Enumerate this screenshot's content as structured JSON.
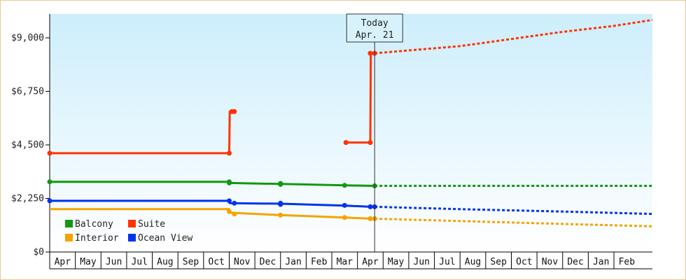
{
  "chart_data": {
    "type": "line",
    "title": "",
    "xlabel": "",
    "ylabel": "",
    "ylim": [
      0,
      10000
    ],
    "y_ticks": [
      "$0",
      "$2,250",
      "$4,500",
      "$6,750",
      "$9,000"
    ],
    "y_tick_values": [
      0,
      2250,
      4500,
      6750,
      9000
    ],
    "x_month_labels": [
      "Apr",
      "May",
      "Jun",
      "Jul",
      "Aug",
      "Sep",
      "Oct",
      "Nov",
      "Dec",
      "Jan",
      "Feb",
      "Mar",
      "Apr",
      "May",
      "Jun",
      "Jul",
      "Aug",
      "Sep",
      "Oct",
      "Nov",
      "Dec",
      "Jan",
      "Feb"
    ],
    "x_range_months": [
      0,
      23.5
    ],
    "today": {
      "label_line1": "Today",
      "label_line2": "Apr. 21",
      "x": 12.67
    },
    "grid": false,
    "background": {
      "top": "#cdeefc",
      "bottom": "#ffffff"
    },
    "legend_position": "bottom-left",
    "legend": [
      {
        "name": "Balcony",
        "color": "#119911"
      },
      {
        "name": "Suite",
        "color": "#ff3300"
      },
      {
        "name": "Interior",
        "color": "#f5a300"
      },
      {
        "name": "Ocean View",
        "color": "#0033ee"
      }
    ],
    "series": [
      {
        "name": "Suite",
        "color": "#ff3300",
        "segments": [
          [
            [
              0,
              4150
            ],
            [
              7.0,
              4150
            ],
            [
              7.02,
              5900
            ],
            [
              7.1,
              5900
            ],
            [
              7.2,
              5900
            ]
          ],
          [
            [
              11.55,
              4600
            ],
            [
              12.5,
              4600
            ],
            [
              12.52,
              8350
            ],
            [
              12.67,
              8350
            ]
          ]
        ],
        "markers": [
          [
            0,
            4150
          ],
          [
            7.0,
            4150
          ],
          [
            7.1,
            5900
          ],
          [
            7.2,
            5900
          ],
          [
            11.55,
            4600
          ],
          [
            12.5,
            4600
          ],
          [
            12.5,
            8350
          ],
          [
            12.67,
            8350
          ]
        ],
        "forecast": [
          [
            12.67,
            8350
          ],
          [
            16.0,
            8650
          ],
          [
            18.0,
            8950
          ],
          [
            20.0,
            9250
          ],
          [
            22.0,
            9500
          ],
          [
            23.5,
            9750
          ]
        ]
      },
      {
        "name": "Balcony",
        "color": "#119911",
        "segments": [
          [
            [
              0,
              2950
            ],
            [
              7.0,
              2950
            ],
            [
              7.02,
              2900
            ],
            [
              9.0,
              2860
            ],
            [
              11.5,
              2800
            ],
            [
              12.67,
              2780
            ]
          ]
        ],
        "markers": [
          [
            0,
            2950
          ],
          [
            7.0,
            2950
          ],
          [
            7.0,
            2900
          ],
          [
            9.0,
            2880
          ],
          [
            9.0,
            2840
          ],
          [
            11.5,
            2800
          ],
          [
            12.67,
            2780
          ]
        ],
        "forecast": [
          [
            12.67,
            2780
          ],
          [
            23.5,
            2780
          ]
        ]
      },
      {
        "name": "Ocean View",
        "color": "#0033ee",
        "segments": [
          [
            [
              0,
              2150
            ],
            [
              7.0,
              2150
            ],
            [
              7.02,
              2050
            ],
            [
              9.0,
              2030
            ],
            [
              11.5,
              1950
            ],
            [
              12.5,
              1900
            ],
            [
              12.67,
              1900
            ]
          ]
        ],
        "markers": [
          [
            0,
            2150
          ],
          [
            7.0,
            2150
          ],
          [
            7.2,
            2050
          ],
          [
            9.0,
            2050
          ],
          [
            9.0,
            2000
          ],
          [
            11.5,
            1960
          ],
          [
            12.5,
            1900
          ],
          [
            12.67,
            1900
          ]
        ],
        "forecast": [
          [
            12.67,
            1900
          ],
          [
            16.0,
            1800
          ],
          [
            20.0,
            1700
          ],
          [
            23.5,
            1600
          ]
        ]
      },
      {
        "name": "Interior",
        "color": "#f5a300",
        "segments": [
          [
            [
              0,
              1800
            ],
            [
              7.0,
              1800
            ],
            [
              7.02,
              1650
            ],
            [
              9.0,
              1550
            ],
            [
              11.5,
              1450
            ],
            [
              12.5,
              1400
            ],
            [
              12.67,
              1400
            ]
          ]
        ],
        "markers": [
          [
            7.0,
            1700
          ],
          [
            7.2,
            1600
          ],
          [
            9.0,
            1550
          ],
          [
            11.5,
            1450
          ],
          [
            12.5,
            1400
          ],
          [
            12.67,
            1400
          ]
        ],
        "forecast": [
          [
            12.67,
            1400
          ],
          [
            16.0,
            1300
          ],
          [
            20.0,
            1180
          ],
          [
            23.5,
            1080
          ]
        ]
      }
    ]
  }
}
